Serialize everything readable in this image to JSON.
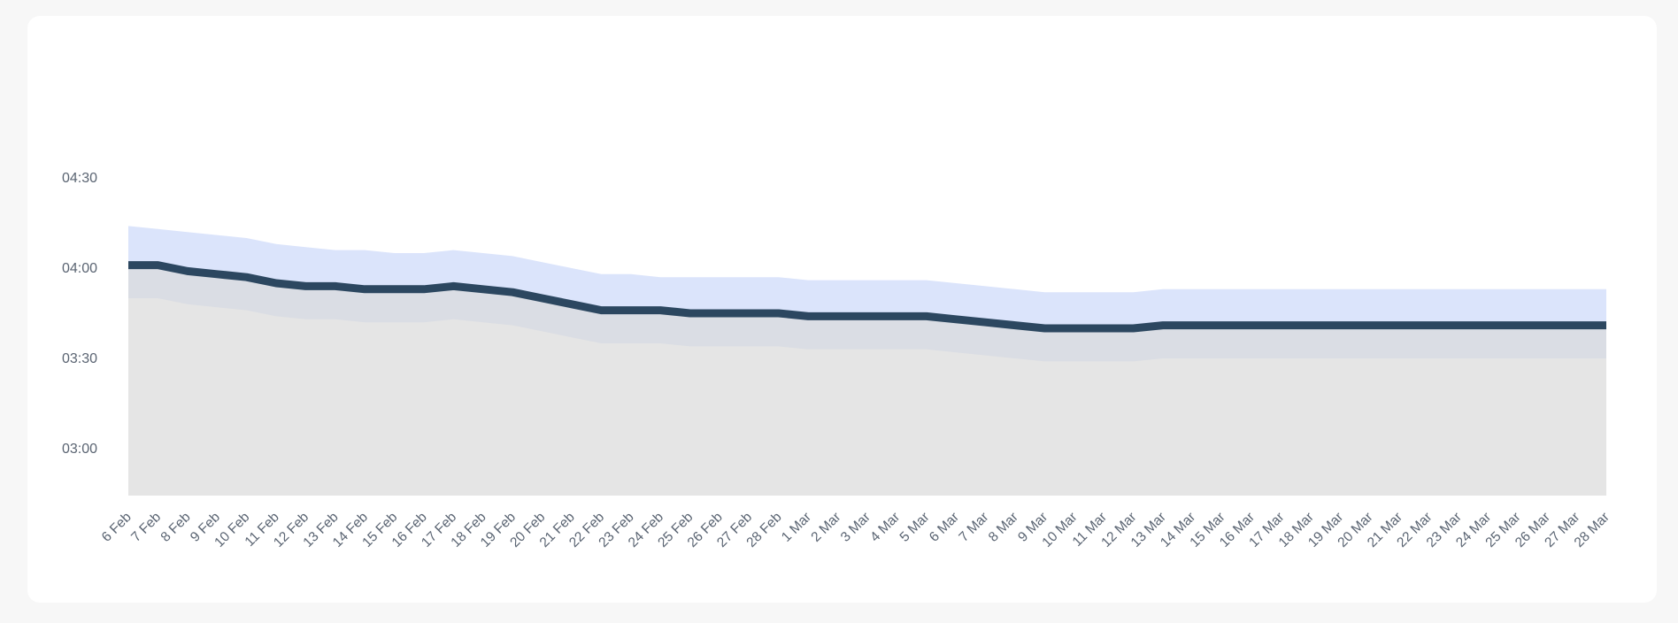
{
  "chart_data": {
    "type": "area",
    "title": "",
    "xlabel": "",
    "ylabel": "",
    "ylim": [
      "02:50",
      "05:00"
    ],
    "y_ticks": [
      "03:00",
      "03:30",
      "04:00",
      "04:30"
    ],
    "x": [
      "6 Feb",
      "7 Feb",
      "8 Feb",
      "9 Feb",
      "10 Feb",
      "11 Feb",
      "12 Feb",
      "13 Feb",
      "14 Feb",
      "15 Feb",
      "16 Feb",
      "17 Feb",
      "18 Feb",
      "19 Feb",
      "20 Feb",
      "21 Feb",
      "22 Feb",
      "23 Feb",
      "24 Feb",
      "25 Feb",
      "26 Feb",
      "27 Feb",
      "28 Feb",
      "1 Mar",
      "2 Mar",
      "3 Mar",
      "4 Mar",
      "5 Mar",
      "6 Mar",
      "7 Mar",
      "8 Mar",
      "9 Mar",
      "10 Mar",
      "11 Mar",
      "12 Mar",
      "13 Mar",
      "14 Mar",
      "15 Mar",
      "16 Mar",
      "17 Mar",
      "18 Mar",
      "19 Mar",
      "20 Mar",
      "21 Mar",
      "22 Mar",
      "23 Mar",
      "24 Mar",
      "25 Mar",
      "26 Mar",
      "27 Mar",
      "28 Mar"
    ],
    "series": [
      {
        "role": "median-line",
        "values": [
          "04:01",
          "04:01",
          "03:59",
          "03:58",
          "03:57",
          "03:55",
          "03:54",
          "03:54",
          "03:53",
          "03:53",
          "03:53",
          "03:54",
          "03:53",
          "03:52",
          "03:50",
          "03:48",
          "03:46",
          "03:46",
          "03:46",
          "03:45",
          "03:45",
          "03:45",
          "03:45",
          "03:44",
          "03:44",
          "03:44",
          "03:44",
          "03:44",
          "03:43",
          "03:42",
          "03:41",
          "03:40",
          "03:40",
          "03:40",
          "03:40",
          "03:41",
          "03:41",
          "03:41",
          "03:41",
          "03:41",
          "03:41",
          "03:41",
          "03:41",
          "03:41",
          "03:41",
          "03:41",
          "03:41",
          "03:41",
          "03:41",
          "03:41",
          "03:41"
        ]
      },
      {
        "role": "upper-band",
        "values": [
          "04:14",
          "04:13",
          "04:12",
          "04:11",
          "04:10",
          "04:08",
          "04:07",
          "04:06",
          "04:06",
          "04:05",
          "04:05",
          "04:06",
          "04:05",
          "04:04",
          "04:02",
          "04:00",
          "03:58",
          "03:58",
          "03:57",
          "03:57",
          "03:57",
          "03:57",
          "03:57",
          "03:56",
          "03:56",
          "03:56",
          "03:56",
          "03:56",
          "03:55",
          "03:54",
          "03:53",
          "03:52",
          "03:52",
          "03:52",
          "03:52",
          "03:53",
          "03:53",
          "03:53",
          "03:53",
          "03:53",
          "03:53",
          "03:53",
          "03:53",
          "03:53",
          "03:53",
          "03:53",
          "03:53",
          "03:53",
          "03:53",
          "03:53",
          "03:53"
        ]
      },
      {
        "role": "lower-band",
        "values": [
          "03:50",
          "03:50",
          "03:48",
          "03:47",
          "03:46",
          "03:44",
          "03:43",
          "03:43",
          "03:42",
          "03:42",
          "03:42",
          "03:43",
          "03:42",
          "03:41",
          "03:39",
          "03:37",
          "03:35",
          "03:35",
          "03:35",
          "03:34",
          "03:34",
          "03:34",
          "03:34",
          "03:33",
          "03:33",
          "03:33",
          "03:33",
          "03:33",
          "03:32",
          "03:31",
          "03:30",
          "03:29",
          "03:29",
          "03:29",
          "03:29",
          "03:30",
          "03:30",
          "03:30",
          "03:30",
          "03:30",
          "03:30",
          "03:30",
          "03:30",
          "03:30",
          "03:30",
          "03:30",
          "03:30",
          "03:30",
          "03:30",
          "03:30",
          "03:30"
        ]
      }
    ],
    "grid": false,
    "legend": "none",
    "colors": {
      "line": "#2c4760",
      "upper_band": "#dbe4fb",
      "middle_band": "#dadde4",
      "lower_area": "#e5e5e5"
    }
  }
}
